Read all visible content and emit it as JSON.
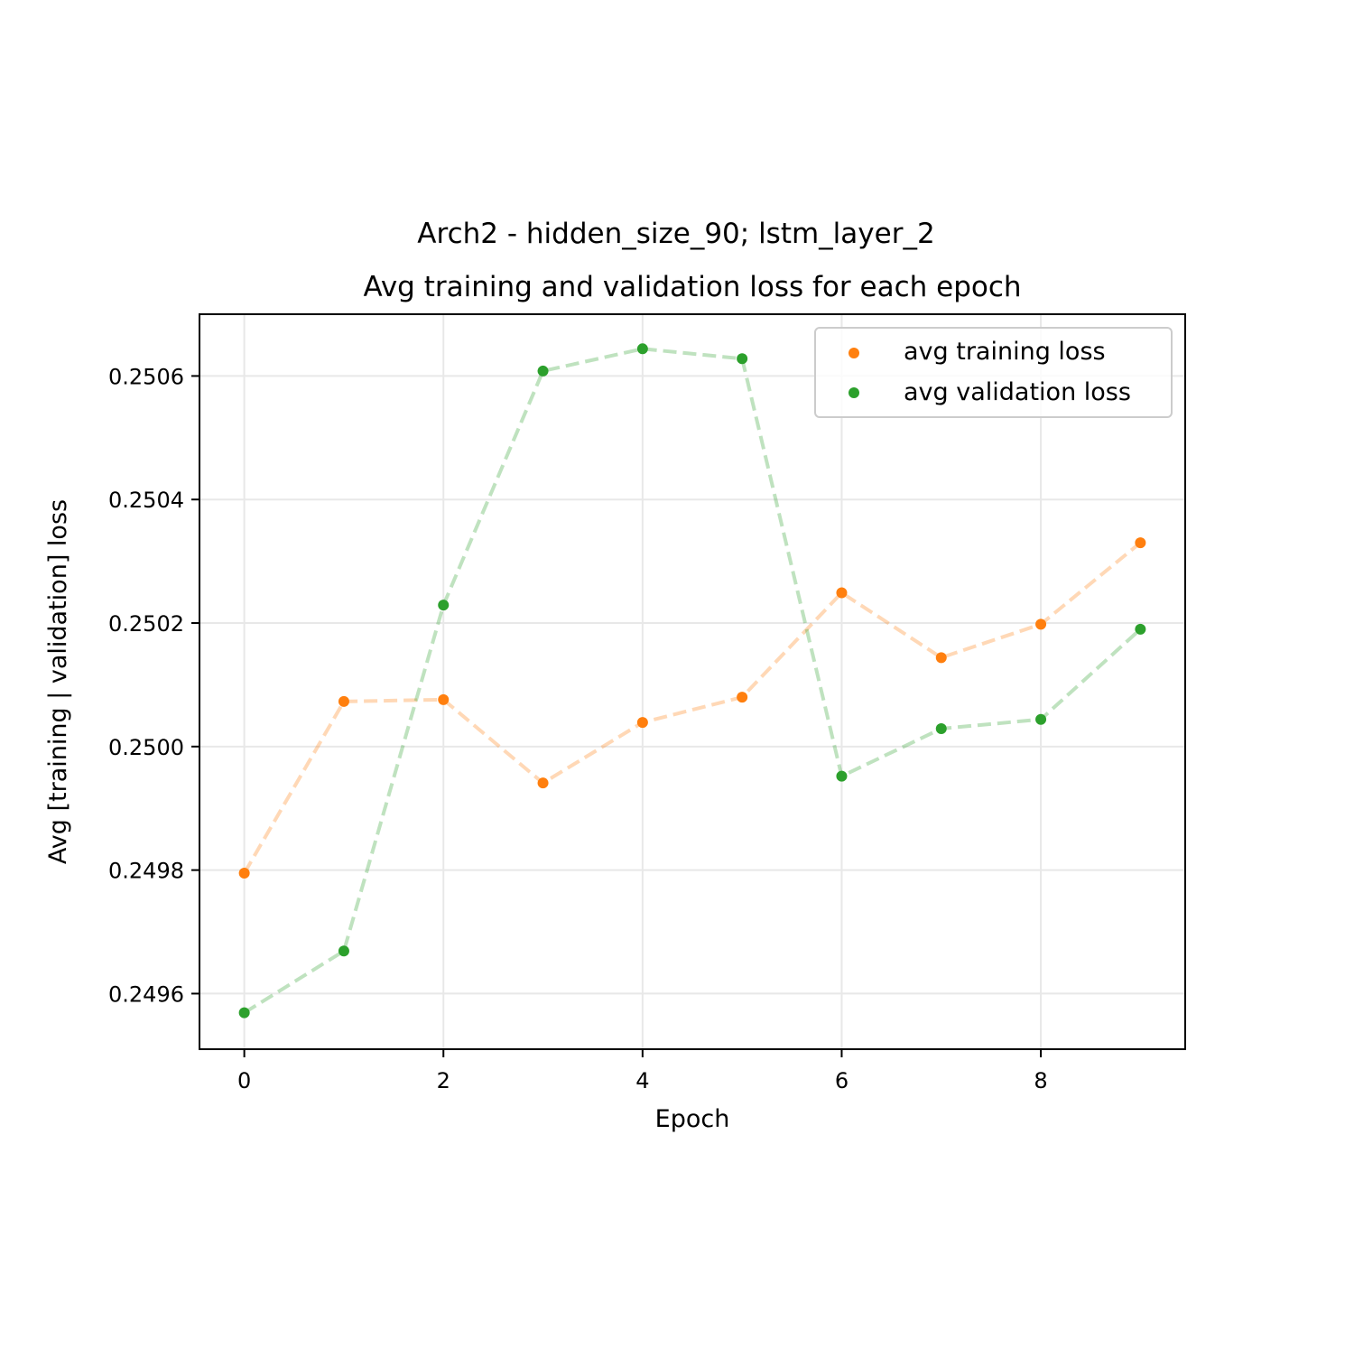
{
  "chart_data": {
    "type": "line",
    "title": "Arch2 - hidden_size_90; lstm_layer_2",
    "subtitle": "Avg training and validation loss for each epoch",
    "xlabel": "Epoch",
    "ylabel": "Avg [training | validation] loss",
    "x": [
      0,
      1,
      2,
      3,
      4,
      5,
      6,
      7,
      8,
      9
    ],
    "xlim": [
      -0.45,
      9.45
    ],
    "ylim": [
      0.24951,
      0.2507
    ],
    "xticks": [
      0,
      2,
      4,
      6,
      8
    ],
    "xtick_labels": [
      "0",
      "2",
      "4",
      "6",
      "8"
    ],
    "yticks": [
      0.2496,
      0.2498,
      0.25,
      0.2502,
      0.2504,
      0.2506
    ],
    "ytick_labels": [
      "0.2496",
      "0.2498",
      "0.2500",
      "0.2502",
      "0.2504",
      "0.2506"
    ],
    "grid": true,
    "legend_position": "top-right",
    "series": [
      {
        "name": "avg training loss",
        "color": "#ff7f0e",
        "line_style": "dashed",
        "values": [
          0.249795,
          0.250073,
          0.250076,
          0.249941,
          0.250039,
          0.25008,
          0.250249,
          0.250144,
          0.250198,
          0.25033
        ]
      },
      {
        "name": "avg validation loss",
        "color": "#2ca02c",
        "line_style": "dashed",
        "values": [
          0.249569,
          0.249669,
          0.250229,
          0.250608,
          0.250644,
          0.250628,
          0.249952,
          0.250029,
          0.250044,
          0.25019
        ]
      }
    ]
  }
}
